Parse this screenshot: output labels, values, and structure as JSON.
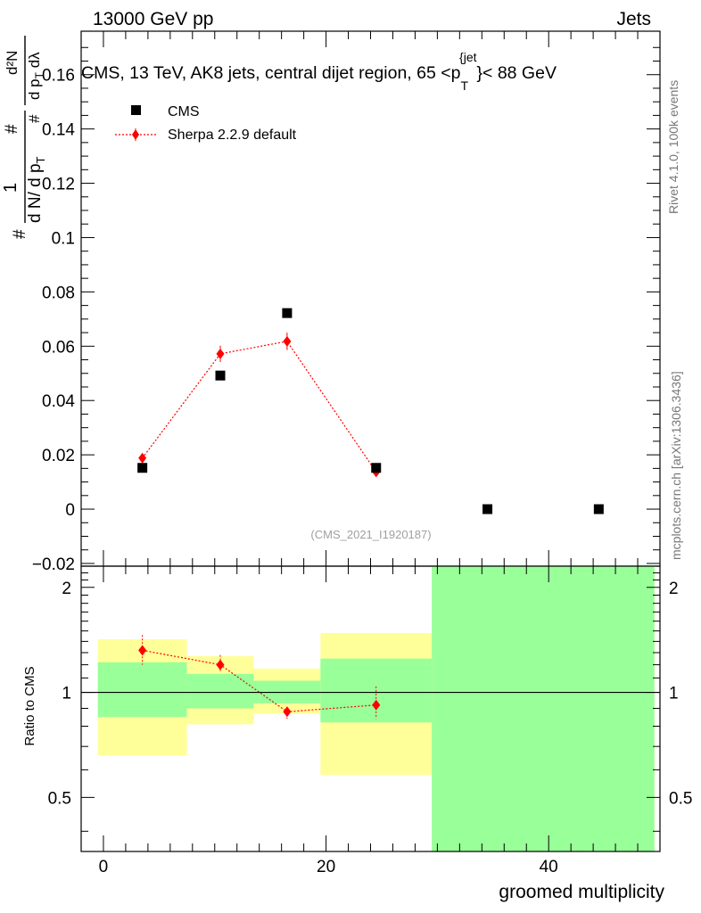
{
  "header": {
    "left": "13000 GeV pp",
    "right": "Jets"
  },
  "side_text": {
    "top": "Rivet 4.1.0,  100k events",
    "bottom": "mcplots.cern.ch [arXiv:1306.3436]"
  },
  "chart_data": {
    "type": "scatter",
    "title": "CMS, 13 TeV, AK8 jets, central dijet region, 65 <p",
    "title_sub": "T",
    "title_sup": "{jet",
    "title_end": "}< 88 GeV",
    "analysis_label": "(CMS_2021_I1920187)",
    "ylabel_main": {
      "hash1": "#",
      "one": "1",
      "hash2": "#",
      "dN_over_dpT": "d N/ d p",
      "dpT_sub": "T",
      "hash3": "#",
      "d2N": "d²N",
      "dpT_dlambda": "d p",
      "dpT_dlambda_sub": "T",
      "dlambda": " dλ"
    },
    "xlabel": "groomed multiplicity",
    "ylabel_ratio": "Ratio to CMS",
    "xlim": [
      -2,
      50
    ],
    "ylim_main": [
      -0.021,
      0.176
    ],
    "ylim_ratio": [
      0.35,
      2.3
    ],
    "x_ticks": [
      "0",
      "20",
      "40"
    ],
    "y_ticks_main": [
      "−0.02",
      "0",
      "0.02",
      "0.04",
      "0.06",
      "0.08",
      "0.1",
      "0.12",
      "0.14",
      "0.16"
    ],
    "y_ticks_ratio": [
      "0.5",
      "1",
      "2"
    ],
    "legend": [
      {
        "label": "CMS",
        "marker": "square",
        "color": "#000000"
      },
      {
        "label": "Sherpa 2.2.9 default",
        "marker": "diamond",
        "color": "#ff0000"
      }
    ],
    "series": [
      {
        "name": "CMS",
        "x": [
          3.5,
          10.5,
          16.5,
          24.5,
          34.5,
          44.5
        ],
        "y": [
          0.0152,
          0.0492,
          0.0722,
          0.0152,
          0.0,
          0.0
        ]
      },
      {
        "name": "Sherpa 2.2.9 default",
        "x": [
          3.5,
          10.5,
          16.5,
          24.5
        ],
        "y": [
          0.0188,
          0.0572,
          0.0618,
          0.0137
        ],
        "yerr": [
          0.0012,
          0.003,
          0.0032,
          0.0013
        ]
      }
    ],
    "ratio": {
      "x": [
        3.5,
        10.5,
        16.5,
        24.5
      ],
      "y": [
        1.32,
        1.2,
        0.88,
        0.92
      ],
      "yerr_low": [
        0.12,
        0.06,
        0.04,
        0.08
      ],
      "yerr_high": [
        0.14,
        0.08,
        0.03,
        0.12
      ]
    },
    "bands": [
      {
        "x0": -0.5,
        "x1": 7.5,
        "stat_lo": 0.85,
        "stat_hi": 1.22,
        "tot_lo": 0.66,
        "tot_hi": 1.42
      },
      {
        "x0": 7.5,
        "x1": 13.5,
        "stat_lo": 0.9,
        "stat_hi": 1.13,
        "tot_lo": 0.81,
        "tot_hi": 1.27
      },
      {
        "x0": 13.5,
        "x1": 19.5,
        "stat_lo": 0.93,
        "stat_hi": 1.08,
        "tot_lo": 0.87,
        "tot_hi": 1.17
      },
      {
        "x0": 19.5,
        "x1": 29.5,
        "stat_lo": 0.82,
        "stat_hi": 1.25,
        "tot_lo": 0.58,
        "tot_hi": 1.48
      },
      {
        "x0": 29.5,
        "x1": 49.5,
        "stat_lo": 0.35,
        "stat_hi": 2.3,
        "tot_lo": 0.35,
        "tot_hi": 2.3
      }
    ],
    "colors": {
      "data": "#000000",
      "mc": "#ff0000",
      "stat_band": "#99ff99",
      "tot_band": "#ffff99"
    }
  }
}
